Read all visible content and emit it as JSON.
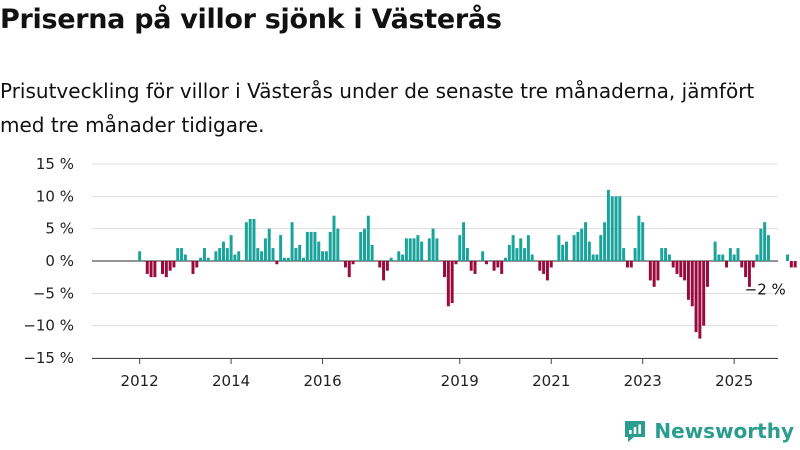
{
  "title": "Priserna på villor sjönk i Västerås",
  "subtitle": "Prisutveckling för villor i Västerås under de senaste tre månaderna, jämfört med tre månader tidigare.",
  "brand": "Newsworthy",
  "colors": {
    "positive": "#1aa39a",
    "negative": "#9b0a3c",
    "brand": "#2a9d8f"
  },
  "chart_data": {
    "type": "bar",
    "x_start": "2011-01",
    "x_end": "2025-12",
    "x_ticks": [
      {
        "date": "2012-01",
        "label": "2012"
      },
      {
        "date": "2014-01",
        "label": "2014"
      },
      {
        "date": "2016-01",
        "label": "2016"
      },
      {
        "date": "2019-01",
        "label": "2019"
      },
      {
        "date": "2021-01",
        "label": "2021"
      },
      {
        "date": "2023-01",
        "label": "2023"
      },
      {
        "date": "2025-01",
        "label": "2025"
      }
    ],
    "y_ticks": [
      {
        "value": 15,
        "label": "15 %"
      },
      {
        "value": 10,
        "label": "10 %"
      },
      {
        "value": 5,
        "label": "5 %"
      },
      {
        "value": 0,
        "label": "0 %"
      },
      {
        "value": -5,
        "label": "−5 %"
      },
      {
        "value": -10,
        "label": "−10 %"
      },
      {
        "value": -15,
        "label": "−15 %"
      }
    ],
    "ylim": [
      -15,
      15
    ],
    "grid": true,
    "annotation": {
      "date": "2025-09",
      "label": "−2 %"
    },
    "series": [
      {
        "start": "2012-01",
        "values": [
          1.5,
          0.0,
          -2.0,
          -2.5,
          -2.5,
          0.0,
          -2.0,
          -2.5,
          -1.5,
          -1.0,
          2.0,
          2.0,
          1.0,
          0.0,
          -2.0,
          -1.0,
          0.5,
          2.0,
          0.5,
          0.0,
          1.5,
          2.0,
          3.0,
          2.0,
          4.0,
          1.0,
          1.5,
          0.0,
          6.0,
          6.5,
          6.5,
          2.0,
          1.5,
          3.5,
          5.0,
          2.0,
          -0.5,
          4.0,
          0.5,
          0.5,
          6.0,
          2.0,
          2.5,
          0.5,
          4.5,
          4.5,
          4.5,
          3.0,
          1.5,
          1.5,
          4.5,
          7.0,
          5.0,
          0.0,
          -1.0,
          -2.5,
          -0.5,
          0.0,
          4.5,
          5.0,
          7.0,
          2.5,
          0.0,
          -1.0,
          -3.0,
          -1.5,
          0.5,
          0.0,
          1.5,
          1.0,
          3.5,
          3.5,
          3.5,
          4.0,
          3.0,
          0.0,
          3.5,
          5.0,
          3.5,
          0.0,
          -2.5,
          -7.0,
          -6.5,
          -0.5,
          4.0,
          6.0,
          2.0,
          -1.5,
          -2.0,
          0.0,
          1.5,
          -0.5,
          0.0,
          -1.5,
          -1.0,
          -2.0,
          0.5,
          2.5,
          4.0,
          2.0,
          3.5,
          2.0,
          4.0,
          1.0,
          0.0,
          -1.5,
          -2.0,
          -3.0,
          -1.0,
          0.0,
          4.0,
          2.5,
          3.0,
          0.0,
          4.0,
          4.5,
          5.0,
          6.0,
          3.0,
          1.0,
          1.0,
          4.0,
          6.0,
          11.0,
          10.0,
          10.0,
          10.0,
          2.0,
          -1.0,
          -1.0,
          2.0,
          7.0,
          6.0,
          0.0,
          -3.0,
          -4.0,
          -3.0,
          2.0,
          2.0,
          1.0,
          -1.0,
          -2.0,
          -2.5,
          -3.0,
          -6.0,
          -7.0,
          -11.0,
          -12.0,
          -10.0,
          -4.0,
          0.0,
          3.0,
          1.0,
          1.0,
          -1.0,
          2.0,
          1.0,
          2.0,
          -1.0,
          -2.5,
          -4.0,
          -1.0,
          1.0,
          5.0,
          6.0,
          4.0,
          0.0,
          0.0,
          0.0,
          0.0,
          1.0,
          -1.0,
          -1.0,
          0.0,
          -2.0,
          -3.5,
          -4.0,
          1.0,
          2.0,
          2.0,
          -2.0
        ]
      }
    ]
  }
}
